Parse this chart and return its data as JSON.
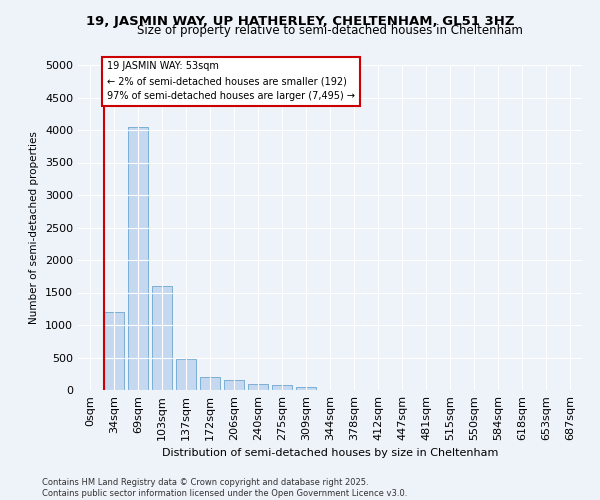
{
  "title": "19, JASMIN WAY, UP HATHERLEY, CHELTENHAM, GL51 3HZ",
  "subtitle": "Size of property relative to semi-detached houses in Cheltenham",
  "xlabel": "Distribution of semi-detached houses by size in Cheltenham",
  "ylabel": "Number of semi-detached properties",
  "bar_categories": [
    "0sqm",
    "34sqm",
    "69sqm",
    "103sqm",
    "137sqm",
    "172sqm",
    "206sqm",
    "240sqm",
    "275sqm",
    "309sqm",
    "344sqm",
    "378sqm",
    "412sqm",
    "447sqm",
    "481sqm",
    "515sqm",
    "550sqm",
    "584sqm",
    "618sqm",
    "653sqm",
    "687sqm"
  ],
  "bar_values": [
    5,
    1200,
    4050,
    1600,
    480,
    200,
    150,
    90,
    70,
    40,
    0,
    0,
    0,
    0,
    0,
    0,
    0,
    0,
    0,
    0,
    0
  ],
  "bar_color": "#c5d8ef",
  "bar_edge_color": "#7aafd4",
  "vline_color": "#cc0000",
  "annotation_title": "19 JASMIN WAY: 53sqm",
  "annotation_line1": "← 2% of semi-detached houses are smaller (192)",
  "annotation_line2": "97% of semi-detached houses are larger (7,495) →",
  "annotation_box_color": "#ffffff",
  "annotation_box_edge": "#cc0000",
  "ylim": [
    0,
    5000
  ],
  "yticks": [
    0,
    500,
    1000,
    1500,
    2000,
    2500,
    3000,
    3500,
    4000,
    4500,
    5000
  ],
  "bg_color": "#eef2f9",
  "grid_color": "#ffffff",
  "footer1": "Contains HM Land Registry data © Crown copyright and database right 2025.",
  "footer2": "Contains public sector information licensed under the Open Government Licence v3.0."
}
